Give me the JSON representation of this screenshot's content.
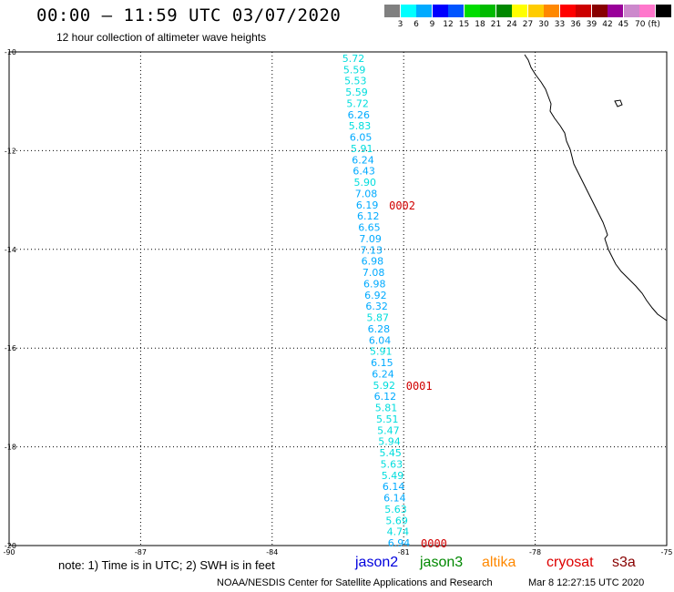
{
  "title": "00:00 – 11:59 UTC 03/07/2020",
  "subtitle": "12 hour collection of altimeter wave heights",
  "scale": {
    "colors": [
      "#808080",
      "#00ffff",
      "#00aaff",
      "#0000ff",
      "#0055ff",
      "#00dd00",
      "#00bb00",
      "#008800",
      "#ffff00",
      "#ffcc00",
      "#ff8800",
      "#ff0000",
      "#cc0000",
      "#880000",
      "#990099",
      "#cc88cc",
      "#ff77cc",
      "#000000"
    ],
    "labels": [
      "3",
      "6",
      "9",
      "12",
      "15",
      "18",
      "21",
      "24",
      "27",
      "30",
      "33",
      "36",
      "39",
      "42",
      "45",
      "70 (ft)"
    ]
  },
  "map": {
    "lat_labels": [
      "-10",
      "-12",
      "-14",
      "-16",
      "-18",
      "-20"
    ],
    "lon_labels": [
      "-90",
      "-87",
      "-84",
      "-81",
      "-78",
      "-75"
    ]
  },
  "swh_colors": {
    "lt6": "#00dddd",
    "lt9": "#00aaff"
  },
  "swh_values": [
    "5.72",
    "5.59",
    "5.53",
    "5.59",
    "5.72",
    "6.26",
    "5.83",
    "6.05",
    "5.91",
    "6.24",
    "6.43",
    "5.90",
    "7.08",
    "6.19",
    "6.12",
    "6.65",
    "7.09",
    "7.13",
    "6.98",
    "7.08",
    "6.98",
    "6.92",
    "6.32",
    "5.87",
    "6.28",
    "6.04",
    "5.91",
    "6.15",
    "6.24",
    "5.92",
    "6.12",
    "5.81",
    "5.51",
    "5.47",
    "5.94",
    "5.45",
    "5.63",
    "5.49",
    "6.14",
    "6.14",
    "5.63",
    "5.69",
    "4.74",
    "6.94"
  ],
  "pass_labels": [
    {
      "text": "0002",
      "row": 13
    },
    {
      "text": "0001",
      "row": 29
    },
    {
      "text": "0000",
      "row": 43
    }
  ],
  "note": "note: 1) Time is in UTC; 2) SWH is in feet",
  "satellites": [
    {
      "name": "jason2",
      "color": "#0000dd"
    },
    {
      "name": "jason3",
      "color": "#008800"
    },
    {
      "name": "altika",
      "color": "#ff8800"
    },
    {
      "name": "cryosat",
      "color": "#dd0000"
    },
    {
      "name": "s3a",
      "color": "#880000"
    }
  ],
  "footer": "NOAA/NESDIS Center for Satellite Applications and Research",
  "footer_timestamp": "Mar  8 12:27:15 UTC 2020"
}
